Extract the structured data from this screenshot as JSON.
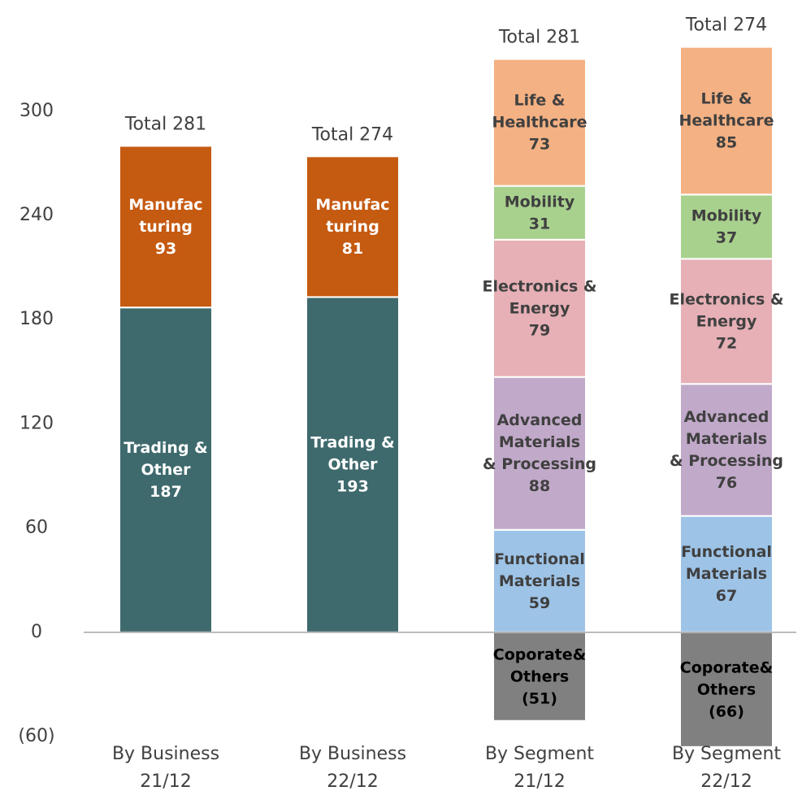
{
  "chart_data": {
    "type": "stacked_bar",
    "categories": [
      [
        "By Business",
        "21/12"
      ],
      [
        "By Business",
        "22/12"
      ],
      [
        "By Segment",
        "21/12"
      ],
      [
        "By Segment",
        "22/12"
      ]
    ],
    "total_labels": [
      "Total 281",
      "Total 274",
      "Total 281",
      "Total 274"
    ],
    "series": [
      {
        "name": [
          "Trading &",
          "Other"
        ],
        "color": "#3e6a6d",
        "label_color": "#ffffff",
        "values": [
          187,
          193,
          null,
          null
        ]
      },
      {
        "name": [
          "Manufac",
          "turing"
        ],
        "color": "#c55a11",
        "label_color": "#ffffff",
        "values": [
          93,
          81,
          null,
          null
        ]
      },
      {
        "name": [
          "Functional",
          "Materials"
        ],
        "color": "#9dc3e6",
        "label_color": "#404040",
        "values": [
          null,
          null,
          59,
          67
        ]
      },
      {
        "name": [
          "Advanced",
          "Materials",
          "& Processing"
        ],
        "color": "#c1a9c9",
        "label_color": "#404040",
        "values": [
          null,
          null,
          88,
          76
        ]
      },
      {
        "name": [
          "Electronics &",
          "Energy"
        ],
        "color": "#e6b0b6",
        "label_color": "#404040",
        "values": [
          null,
          null,
          79,
          72
        ]
      },
      {
        "name": [
          "Mobility"
        ],
        "color": "#a9d18e",
        "label_color": "#404040",
        "values": [
          null,
          null,
          31,
          37
        ]
      },
      {
        "name": [
          "Life &",
          "Healthcare"
        ],
        "color": "#f4b183",
        "label_color": "#404040",
        "values": [
          null,
          null,
          73,
          85
        ]
      },
      {
        "name": [
          "Coporate&",
          "Others"
        ],
        "color": "#808080",
        "label_color": "#000000",
        "values": [
          null,
          null,
          -51,
          -66
        ],
        "value_labels": [
          null,
          null,
          "(51)",
          "(66)"
        ]
      }
    ],
    "ylim": [
      -60,
      364
    ],
    "yticks": [
      {
        "value": -60,
        "label": "(60)"
      },
      0,
      60,
      120,
      180,
      240,
      300
    ],
    "grid": false
  }
}
